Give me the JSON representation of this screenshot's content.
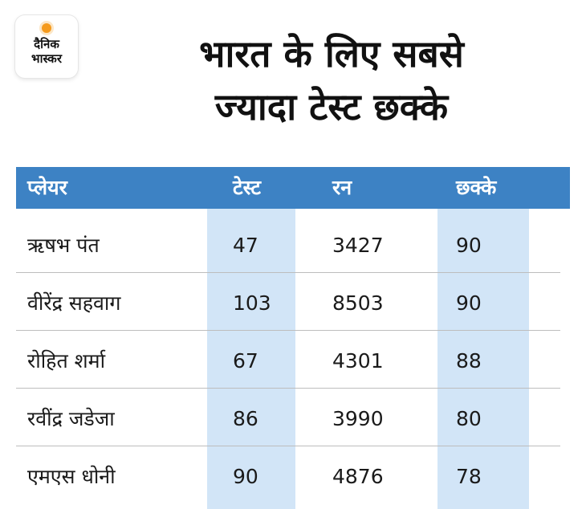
{
  "logo": {
    "line1": "दैनिक",
    "line2": "भास्कर"
  },
  "title": {
    "line1": "भारत के लिए सबसे",
    "line2": "ज्यादा टेस्ट छक्के"
  },
  "chart_data": {
    "type": "table",
    "title": "भारत के लिए सबसे ज्यादा टेस्ट छक्के",
    "columns": [
      "प्लेयर",
      "टेस्ट",
      "रन",
      "छक्के"
    ],
    "rows": [
      [
        "ऋषभ पंत",
        "47",
        "3427",
        "90"
      ],
      [
        "वीरेंद्र सहवाग",
        "103",
        "8503",
        "90"
      ],
      [
        "रोहित शर्मा",
        "67",
        "4301",
        "88"
      ],
      [
        "रवींद्र जडेजा",
        "86",
        "3990",
        "80"
      ],
      [
        "एमएस धोनी",
        "90",
        "4876",
        "78"
      ]
    ]
  },
  "colors": {
    "header_bg": "#3d82c4",
    "highlight_column": "#d2e5f7",
    "logo_accent": "#f59a1c"
  }
}
